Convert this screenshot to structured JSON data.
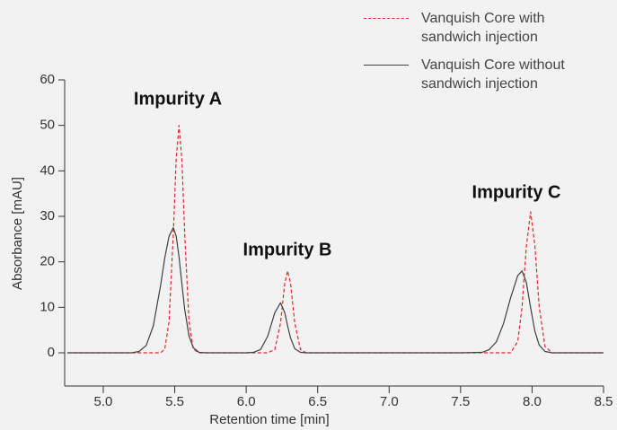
{
  "chart_data": {
    "type": "line",
    "annotations": [
      "Impurity A",
      "Impurity B",
      "Impurity C"
    ],
    "xlabel": "Retention time [min]",
    "ylabel": "Absorbance [mAU]",
    "x": [
      4.75,
      5.0,
      5.2,
      5.25,
      5.3,
      5.35,
      5.4,
      5.43,
      5.46,
      5.49,
      5.51,
      5.53,
      5.55,
      5.57,
      5.6,
      5.63,
      5.67,
      5.72,
      5.8,
      6.0,
      6.05,
      6.1,
      6.15,
      6.2,
      6.24,
      6.27,
      6.29,
      6.31,
      6.34,
      6.38,
      6.42,
      6.5,
      7.0,
      7.5,
      7.65,
      7.7,
      7.75,
      7.8,
      7.85,
      7.9,
      7.93,
      7.96,
      7.99,
      8.02,
      8.05,
      8.09,
      8.14,
      8.2,
      8.3,
      8.5
    ],
    "series": [
      {
        "name": "Vanquish Core with sandwich injection",
        "color": "#e8262a",
        "dashed": true,
        "values": [
          0,
          0,
          0,
          0,
          0,
          0,
          0,
          0.8,
          6.8,
          26,
          42.5,
          50,
          42.5,
          26,
          6.8,
          0.8,
          0,
          0,
          0,
          0,
          0,
          0,
          0,
          0.7,
          6.5,
          15.3,
          18,
          15.3,
          6.5,
          0.7,
          0,
          0,
          0,
          0,
          0,
          0,
          0,
          0,
          0,
          2.5,
          10.1,
          23.4,
          31,
          23.4,
          10.1,
          1.4,
          0,
          0,
          0,
          0
        ]
      },
      {
        "name": "Vanquish Core without sandwich injection",
        "color": "#404040",
        "dashed": false,
        "values": [
          0,
          0,
          0,
          0.3,
          1.6,
          5.9,
          14.6,
          20.8,
          25.6,
          27.5,
          25.7,
          21.1,
          15.2,
          9.5,
          3.7,
          1.1,
          0.1,
          0,
          0,
          0,
          0.1,
          0.7,
          3.6,
          8.8,
          11,
          8.8,
          5.9,
          3.3,
          0.9,
          0.1,
          0,
          0,
          0,
          0,
          0.1,
          0.7,
          2.4,
          6.4,
          12.1,
          17,
          18,
          15.5,
          9.9,
          4.7,
          1.7,
          0.3,
          0,
          0,
          0,
          0
        ]
      }
    ],
    "xlim": [
      4.73,
      8.5
    ],
    "ylim": [
      -7.3,
      60
    ],
    "xticks": [
      {
        "value": 5,
        "label": "5.0"
      },
      5.5,
      {
        "value": 6,
        "label": "6.0"
      },
      6.5,
      {
        "value": 7,
        "label": "7.0"
      },
      7.5,
      {
        "value": 8,
        "label": "8.0"
      },
      8.5
    ],
    "yticks": [
      0,
      10,
      20,
      30,
      40,
      50,
      60
    ],
    "grid": false,
    "legend": "upper right"
  }
}
